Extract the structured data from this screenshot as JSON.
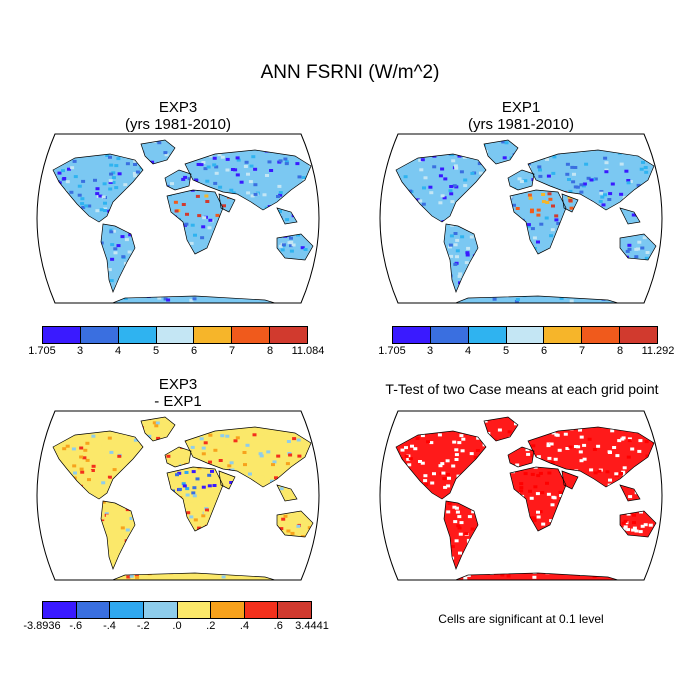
{
  "title": "ANN FSRNI (W/m^2)",
  "panels": {
    "top_left": {
      "line1": "EXP3",
      "line2": "(yrs 1981-2010)"
    },
    "top_right": {
      "line1": "EXP1",
      "line2": "(yrs 1981-2010)"
    },
    "bottom_left": {
      "line1": "EXP3",
      "line2": "- EXP1"
    },
    "bottom_right": {
      "title": "T-Test of two Case means at each grid point"
    }
  },
  "colorbars": {
    "top_left": {
      "colors": [
        "#3a1aff",
        "#3a6fe0",
        "#2fb3f0",
        "#c4e6f4",
        "#f6b52a",
        "#f05a1c",
        "#d13a2e"
      ],
      "labels": [
        "1.705",
        "3",
        "4",
        "5",
        "6",
        "7",
        "8",
        "11.084"
      ]
    },
    "top_right": {
      "colors": [
        "#3a1aff",
        "#3a6fe0",
        "#2fb3f0",
        "#c4e6f4",
        "#f6b52a",
        "#f05a1c",
        "#d13a2e"
      ],
      "labels": [
        "1.705",
        "3",
        "4",
        "5",
        "6",
        "7",
        "8",
        "11.292"
      ]
    },
    "bottom_left": {
      "colors": [
        "#3a1aff",
        "#3a6fe0",
        "#2fa8f0",
        "#8ecdec",
        "#fbe86a",
        "#f7a21c",
        "#f3301c",
        "#d13a2e"
      ],
      "labels": [
        "-3.8936",
        "-.6",
        "-.4",
        "-.2",
        ".0",
        ".2",
        ".4",
        ".6",
        "3.4441"
      ]
    }
  },
  "note": "Cells are significant at 0.1 level",
  "colors": {
    "ocean": "#ffffff",
    "land_outline": "#000000",
    "significant": "#ff0000"
  }
}
